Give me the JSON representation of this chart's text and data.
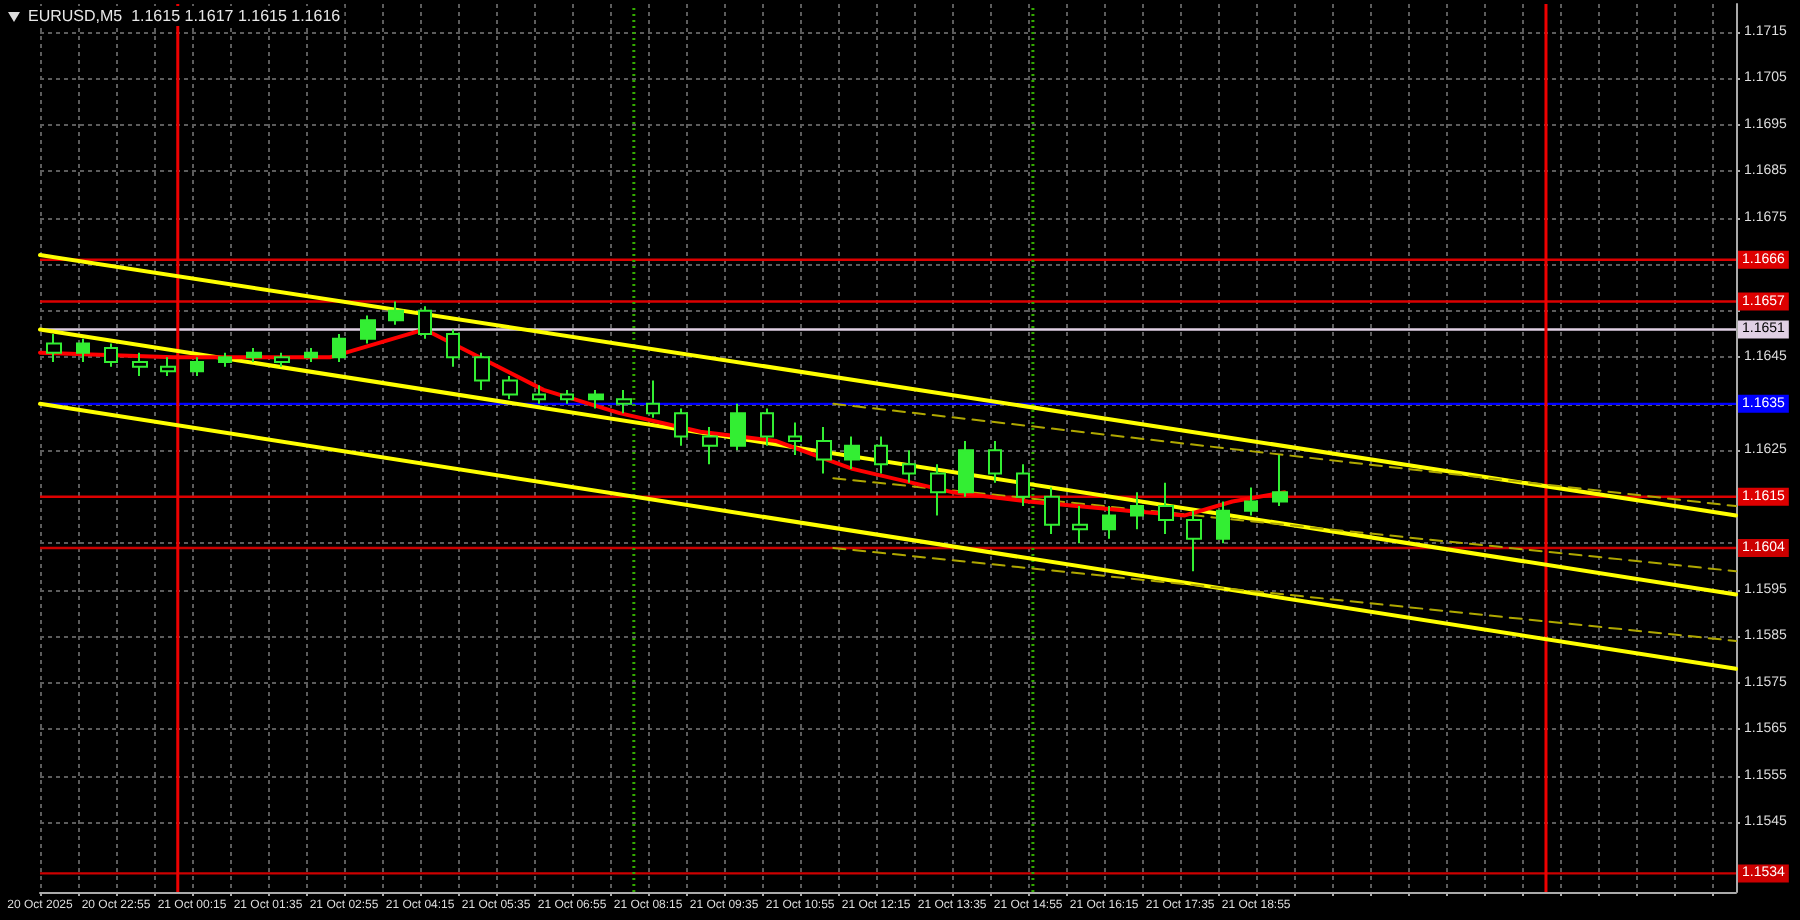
{
  "chart_data": {
    "type": "candlestick",
    "title": "EURUSD,M5  1.1615 1.1617 1.1615 1.1616",
    "marker": "none",
    "grid": true,
    "xlim": [
      "2025-10-20T21:35",
      "2025-10-22T03:20"
    ],
    "xticks": [
      {
        "value": "2025-10-20T21:35",
        "label": "20 Oct 2025"
      },
      {
        "value": "2025-10-20T22:15",
        "label": null
      },
      {
        "value": "2025-10-20T22:55",
        "label": "20 Oct 22:55"
      },
      {
        "value": "2025-10-20T23:35",
        "label": null
      },
      {
        "value": "2025-10-21T00:15",
        "label": "21 Oct 00:15"
      },
      {
        "value": "2025-10-21T00:55",
        "label": null
      },
      {
        "value": "2025-10-21T01:35",
        "label": "21 Oct 01:35"
      },
      {
        "value": "2025-10-21T02:15",
        "label": null
      },
      {
        "value": "2025-10-21T02:55",
        "label": "21 Oct 02:55"
      },
      {
        "value": "2025-10-21T03:35",
        "label": null
      },
      {
        "value": "2025-10-21T04:15",
        "label": "21 Oct 04:15"
      },
      {
        "value": "2025-10-21T04:55",
        "label": null
      },
      {
        "value": "2025-10-21T05:35",
        "label": "21 Oct 05:35"
      },
      {
        "value": "2025-10-21T06:15",
        "label": null
      },
      {
        "value": "2025-10-21T06:55",
        "label": "21 Oct 06:55"
      },
      {
        "value": "2025-10-21T07:35",
        "label": null
      },
      {
        "value": "2025-10-21T08:15",
        "label": "21 Oct 08:15"
      },
      {
        "value": "2025-10-21T08:55",
        "label": null
      },
      {
        "value": "2025-10-21T09:35",
        "label": "21 Oct 09:35"
      },
      {
        "value": "2025-10-21T10:15",
        "label": null
      },
      {
        "value": "2025-10-21T10:55",
        "label": "21 Oct 10:55"
      },
      {
        "value": "2025-10-21T11:35",
        "label": null
      },
      {
        "value": "2025-10-21T12:15",
        "label": "21 Oct 12:15"
      },
      {
        "value": "2025-10-21T12:55",
        "label": null
      },
      {
        "value": "2025-10-21T13:35",
        "label": "21 Oct 13:35"
      },
      {
        "value": "2025-10-21T14:15",
        "label": null
      },
      {
        "value": "2025-10-21T14:55",
        "label": "21 Oct 14:55"
      },
      {
        "value": "2025-10-21T15:35",
        "label": null
      },
      {
        "value": "2025-10-21T16:15",
        "label": "21 Oct 16:15"
      },
      {
        "value": "2025-10-21T16:55",
        "label": null
      },
      {
        "value": "2025-10-21T17:35",
        "label": "21 Oct 17:35"
      },
      {
        "value": "2025-10-21T18:15",
        "label": null
      },
      {
        "value": "2025-10-21T18:55",
        "label": "21 Oct 18:55"
      },
      {
        "value": "2025-10-21T19:35",
        "label": null
      },
      {
        "value": "2025-10-21T20:15",
        "label": null
      },
      {
        "value": "2025-10-21T20:55",
        "label": null
      },
      {
        "value": "2025-10-21T21:35",
        "label": null
      },
      {
        "value": "2025-10-21T22:15",
        "label": null
      },
      {
        "value": "2025-10-21T22:55",
        "label": null
      },
      {
        "value": "2025-10-21T23:35",
        "label": null
      },
      {
        "value": "2025-10-22T00:15",
        "label": null
      },
      {
        "value": "2025-10-22T00:55",
        "label": null
      },
      {
        "value": "2025-10-22T01:35",
        "label": null
      },
      {
        "value": "2025-10-22T02:15",
        "label": null
      },
      {
        "value": "2025-10-22T02:55",
        "label": null
      }
    ],
    "ylim": [
      1.153,
      1.1721
    ],
    "yticks": [
      1.1545,
      1.1555,
      1.1565,
      1.1575,
      1.1585,
      1.1595,
      {
        "value": 1.1605,
        "label": null
      },
      {
        "value": 1.1615,
        "label": null
      },
      1.1625,
      {
        "value": 1.1635,
        "label": null
      },
      1.1645,
      {
        "value": 1.1655,
        "label": null
      },
      {
        "value": 1.1665,
        "label": null
      },
      1.1675,
      1.1685,
      1.1695,
      1.1705,
      1.1715
    ],
    "ref_lines": [
      {
        "axis": "y",
        "value": 1.1666,
        "label": "1.1666",
        "color": "#dd0000"
      },
      {
        "axis": "y",
        "value": 1.1657,
        "label": "1.1657",
        "color": "#dd0000"
      },
      {
        "axis": "y",
        "value": 1.1651,
        "label": "1.1651",
        "color": "#e0d0e4"
      },
      {
        "axis": "y",
        "value": 1.1635,
        "label": "1.1635",
        "color": "#0000ff"
      },
      {
        "axis": "y",
        "value": 1.1615,
        "label": "1.1615",
        "color": "#dd0000"
      },
      {
        "axis": "y",
        "value": 1.1604,
        "label": "1.1604",
        "color": "#cc0000"
      },
      {
        "axis": "y",
        "value": 1.1534,
        "label": "1.1534",
        "color": "#cc0000"
      },
      {
        "axis": "x",
        "value": "2025-10-21T00:00",
        "color": "#ee0000",
        "line_style": "solid"
      },
      {
        "axis": "x",
        "value": "2025-10-22T00:00",
        "color": "#ee0000",
        "line_style": "solid"
      },
      {
        "axis": "x",
        "value": "2025-10-21T08:00",
        "color": "#33aa00",
        "line_style": "dotted"
      },
      {
        "axis": "x",
        "value": "2025-10-21T15:00",
        "color": "#33aa00",
        "line_style": "dotted"
      }
    ],
    "series": [
      {
        "type": "line",
        "color": "#ffff00",
        "line_style": "solid",
        "x": [
          "2025-10-20T21:35",
          "2025-10-22T03:20"
        ],
        "values": [
          1.1667,
          1.1611
        ]
      },
      {
        "type": "line",
        "color": "#ffff00",
        "line_style": "solid",
        "x": [
          "2025-10-20T21:35",
          "2025-10-22T03:20"
        ],
        "values": [
          1.1651,
          1.1594
        ]
      },
      {
        "type": "line",
        "color": "#ffff00",
        "line_style": "solid",
        "x": [
          "2025-10-20T21:35",
          "2025-10-22T03:20"
        ],
        "values": [
          1.1635,
          1.1578
        ]
      },
      {
        "type": "line",
        "color": "#b0a800",
        "line_style": "dashed",
        "x": [
          "2025-10-21T11:30",
          "2025-10-22T03:20"
        ],
        "values": [
          1.1635,
          1.1613
        ]
      },
      {
        "type": "line",
        "color": "#b0a800",
        "line_style": "dashed",
        "x": [
          "2025-10-21T11:30",
          "2025-10-22T03:20"
        ],
        "values": [
          1.1619,
          1.1599
        ]
      },
      {
        "type": "line",
        "color": "#b0a800",
        "line_style": "dashed",
        "x": [
          "2025-10-21T11:30",
          "2025-10-22T03:20"
        ],
        "values": [
          1.1604,
          1.1584
        ]
      },
      {
        "type": "line",
        "color": "#ff0000",
        "line_style": "solid",
        "x": [
          "2025-10-20T21:35",
          "2025-10-20T23:55",
          "2025-10-21T02:40",
          "2025-10-21T04:20",
          "2025-10-21T06:25",
          "2025-10-21T07:45",
          "2025-10-21T09:10",
          "2025-10-21T10:30",
          "2025-10-21T11:50",
          "2025-10-21T13:35",
          "2025-10-21T14:55",
          "2025-10-21T16:40",
          "2025-10-21T17:40",
          "2025-10-21T18:30",
          "2025-10-21T19:25"
        ],
        "values": [
          1.1646,
          1.1645,
          1.1645,
          1.1651,
          1.1638,
          1.1633,
          1.1629,
          1.1627,
          1.1621,
          1.1616,
          1.1614,
          1.1612,
          1.1611,
          1.1614,
          1.1616
        ]
      },
      {
        "type": "candlestick",
        "color": "#33ee33",
        "x": [
          "2025-10-20T21:50",
          "2025-10-20T22:20",
          "2025-10-20T22:50",
          "2025-10-20T23:20",
          "2025-10-20T23:50",
          "2025-10-21T00:20",
          "2025-10-21T00:50",
          "2025-10-21T01:20",
          "2025-10-21T01:50",
          "2025-10-21T02:20",
          "2025-10-21T02:50",
          "2025-10-21T03:20",
          "2025-10-21T03:50",
          "2025-10-21T04:20",
          "2025-10-21T04:50",
          "2025-10-21T05:20",
          "2025-10-21T05:50",
          "2025-10-21T06:20",
          "2025-10-21T06:50",
          "2025-10-21T07:20",
          "2025-10-21T07:50",
          "2025-10-21T08:20",
          "2025-10-21T08:50",
          "2025-10-21T09:20",
          "2025-10-21T09:50",
          "2025-10-21T10:20",
          "2025-10-21T10:50",
          "2025-10-21T11:20",
          "2025-10-21T11:50",
          "2025-10-21T12:20",
          "2025-10-21T12:50",
          "2025-10-21T13:20",
          "2025-10-21T13:50",
          "2025-10-21T14:20",
          "2025-10-21T14:50",
          "2025-10-21T15:20",
          "2025-10-21T15:50",
          "2025-10-21T16:20",
          "2025-10-21T16:50",
          "2025-10-21T17:20",
          "2025-10-21T17:50",
          "2025-10-21T18:20",
          "2025-10-21T18:50",
          "2025-10-21T19:20"
        ],
        "ohlc": [
          [
            1.1648,
            1.165,
            1.1644,
            1.1646
          ],
          [
            1.1646,
            1.1649,
            1.1644,
            1.1648
          ],
          [
            1.1647,
            1.1648,
            1.1643,
            1.1644
          ],
          [
            1.1644,
            1.1646,
            1.1641,
            1.1643
          ],
          [
            1.1643,
            1.1645,
            1.1641,
            1.1642
          ],
          [
            1.1642,
            1.1645,
            1.1641,
            1.1644
          ],
          [
            1.1644,
            1.1646,
            1.1643,
            1.1645
          ],
          [
            1.1645,
            1.1647,
            1.1644,
            1.1646
          ],
          [
            1.1645,
            1.1646,
            1.1643,
            1.1644
          ],
          [
            1.1645,
            1.1647,
            1.1644,
            1.1646
          ],
          [
            1.1645,
            1.165,
            1.1644,
            1.1649
          ],
          [
            1.1649,
            1.1654,
            1.1648,
            1.1653
          ],
          [
            1.1653,
            1.1657,
            1.1652,
            1.1655
          ],
          [
            1.1655,
            1.1656,
            1.1649,
            1.165
          ],
          [
            1.165,
            1.1651,
            1.1643,
            1.1645
          ],
          [
            1.1645,
            1.1646,
            1.1638,
            1.164
          ],
          [
            1.164,
            1.1641,
            1.1636,
            1.1637
          ],
          [
            1.1637,
            1.1639,
            1.1635,
            1.1636
          ],
          [
            1.1637,
            1.1638,
            1.1635,
            1.1636
          ],
          [
            1.1636,
            1.1638,
            1.1634,
            1.1637
          ],
          [
            1.1636,
            1.1638,
            1.1633,
            1.1635
          ],
          [
            1.1635,
            1.164,
            1.1632,
            1.1633
          ],
          [
            1.1633,
            1.1634,
            1.1626,
            1.1628
          ],
          [
            1.1628,
            1.163,
            1.1622,
            1.1626
          ],
          [
            1.1626,
            1.1635,
            1.1625,
            1.1633
          ],
          [
            1.1633,
            1.1634,
            1.1626,
            1.1628
          ],
          [
            1.1628,
            1.1631,
            1.1624,
            1.1627
          ],
          [
            1.1627,
            1.163,
            1.162,
            1.1623
          ],
          [
            1.1623,
            1.1628,
            1.1621,
            1.1626
          ],
          [
            1.1626,
            1.1628,
            1.162,
            1.1622
          ],
          [
            1.1622,
            1.1625,
            1.1618,
            1.162
          ],
          [
            1.162,
            1.1622,
            1.1611,
            1.1616
          ],
          [
            1.1616,
            1.1627,
            1.1615,
            1.1625
          ],
          [
            1.1625,
            1.1627,
            1.1618,
            1.162
          ],
          [
            1.162,
            1.1622,
            1.1613,
            1.1615
          ],
          [
            1.1615,
            1.1617,
            1.1607,
            1.1609
          ],
          [
            1.1609,
            1.1613,
            1.1605,
            1.1608
          ],
          [
            1.1608,
            1.1613,
            1.1606,
            1.1611
          ],
          [
            1.1611,
            1.1616,
            1.1608,
            1.1613
          ],
          [
            1.1613,
            1.1618,
            1.1607,
            1.161
          ],
          [
            1.161,
            1.1612,
            1.1599,
            1.1606
          ],
          [
            1.1606,
            1.1614,
            1.1605,
            1.1612
          ],
          [
            1.1612,
            1.1617,
            1.1611,
            1.1614
          ],
          [
            1.1614,
            1.1624,
            1.1613,
            1.1616
          ]
        ]
      }
    ]
  }
}
